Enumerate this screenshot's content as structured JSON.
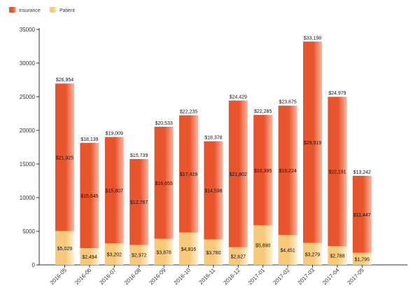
{
  "chart_data": {
    "type": "bar",
    "stacked": true,
    "categories": [
      "2016-05",
      "2016-06",
      "2016-07",
      "2016-08",
      "2016-09",
      "2016-10",
      "2016-11",
      "2016-12",
      "2017-01",
      "2017-02",
      "2017-03",
      "2017-04",
      "2017-05"
    ],
    "series": [
      {
        "name": "Patient",
        "color": "#f7c97a",
        "values": [
          5029,
          2494,
          3202,
          2972,
          3878,
          4816,
          3780,
          2627,
          5890,
          4451,
          3279,
          2788,
          1795
        ],
        "labels": [
          "$5,029",
          "$2,494",
          "$3,202",
          "$2,972",
          "$3,878",
          "$4,816",
          "$3,780",
          "$2,627",
          "$5,890",
          "$4,451",
          "$3,279",
          "$2,788",
          "$1,795"
        ]
      },
      {
        "name": "Insurance",
        "color": "#e8542c",
        "values": [
          21925,
          15645,
          15807,
          12767,
          16655,
          17419,
          14598,
          21802,
          16395,
          19224,
          29919,
          22191,
          11447
        ],
        "labels": [
          "$21,925",
          "$15,645",
          "$15,807",
          "$12,767",
          "$16,655",
          "$17,419",
          "$14,598",
          "$21,802",
          "$16,395",
          "$19,224",
          "$29,919",
          "$22,191",
          "$11,447"
        ]
      }
    ],
    "totals": [
      26954,
      18139,
      19009,
      15739,
      20533,
      22235,
      18378,
      24429,
      22285,
      23675,
      33198,
      24979,
      13242
    ],
    "total_labels": [
      "$26,954",
      "$18,139",
      "$19,009",
      "$15,739",
      "$20,533",
      "$22,235",
      "$18,378",
      "$24,429",
      "$22,285",
      "$23,675",
      "$33,198",
      "$24,979",
      "$13,242"
    ],
    "y_ticks": [
      0,
      5000,
      10000,
      15000,
      20000,
      25000,
      30000,
      35000
    ],
    "ylim": [
      0,
      35000
    ],
    "legend": [
      {
        "name": "Insurance",
        "color": "#e8542c"
      },
      {
        "name": "Patient",
        "color": "#f7c97a"
      }
    ],
    "legend_position": "top-left",
    "grid": false,
    "title": "",
    "xlabel": "",
    "ylabel": ""
  }
}
